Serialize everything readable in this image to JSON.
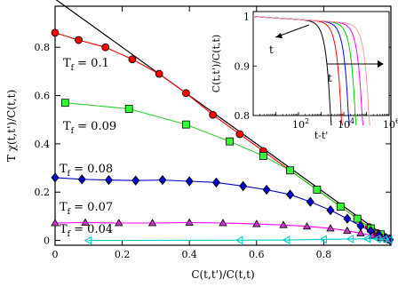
{
  "chart_data": [
    {
      "type": "scatter",
      "xlabel": "C(t,t')/C(t,t)",
      "ylabel": "T χ(t,t')/C(t,t)",
      "xlim": [
        0,
        1.0
      ],
      "ylim": [
        -0.02,
        0.97
      ],
      "xticks": [
        0,
        0.2,
        0.4,
        0.6,
        0.8
      ],
      "yticks": [
        0,
        0.2,
        0.4,
        0.6,
        0.8
      ],
      "reference_line": {
        "x": [
          0,
          1
        ],
        "y": [
          1,
          0
        ],
        "color": "#000000"
      },
      "series": [
        {
          "name": "T_f = 0.1",
          "label_base": "T",
          "label_sub": "f",
          "label_rest": " = 0.1",
          "marker": "circle",
          "color": "#ff0000",
          "line_color": "#ff0000",
          "x": [
            0.0,
            0.07,
            0.15,
            0.23,
            0.31,
            0.39,
            0.47,
            0.55,
            0.62,
            0.7,
            0.78,
            0.85,
            0.9,
            0.935,
            0.96,
            0.98,
            0.995
          ],
          "y": [
            0.86,
            0.83,
            0.8,
            0.75,
            0.69,
            0.61,
            0.52,
            0.44,
            0.37,
            0.29,
            0.21,
            0.14,
            0.09,
            0.055,
            0.03,
            0.015,
            0.003
          ]
        },
        {
          "name": "T_f = 0.09",
          "label_base": "T",
          "label_sub": "f",
          "label_rest": " = 0.09",
          "marker": "square",
          "color": "#33ff33",
          "line_color": "#33cc33",
          "x": [
            0.03,
            0.22,
            0.39,
            0.52,
            0.62,
            0.7,
            0.78,
            0.85,
            0.9,
            0.94,
            0.97,
            0.99
          ],
          "y": [
            0.57,
            0.545,
            0.48,
            0.41,
            0.35,
            0.29,
            0.21,
            0.14,
            0.09,
            0.05,
            0.025,
            0.008
          ]
        },
        {
          "name": "T_f = 0.08",
          "label_base": "T",
          "label_sub": "f",
          "label_rest": " = 0.08",
          "marker": "diamond",
          "color": "#0000cc",
          "line_color": "#0000cc",
          "x": [
            0.0,
            0.08,
            0.16,
            0.24,
            0.32,
            0.4,
            0.48,
            0.56,
            0.63,
            0.7,
            0.76,
            0.82,
            0.87,
            0.91,
            0.94,
            0.965,
            0.985,
            0.997
          ],
          "y": [
            0.26,
            0.253,
            0.25,
            0.248,
            0.25,
            0.245,
            0.24,
            0.225,
            0.21,
            0.19,
            0.16,
            0.125,
            0.09,
            0.06,
            0.04,
            0.022,
            0.01,
            0.003
          ]
        },
        {
          "name": "T_f = 0.07",
          "label_base": "T",
          "label_sub": "f",
          "label_rest": " = 0.07",
          "marker": "triangle-up",
          "color": "#cc33cc",
          "line_color": "#ff00ff",
          "x": [
            0.0,
            0.09,
            0.19,
            0.29,
            0.4,
            0.5,
            0.6,
            0.68,
            0.75,
            0.82,
            0.87,
            0.91,
            0.945,
            0.97,
            0.99
          ],
          "y": [
            0.072,
            0.074,
            0.072,
            0.072,
            0.074,
            0.072,
            0.068,
            0.064,
            0.058,
            0.05,
            0.04,
            0.03,
            0.02,
            0.01,
            0.004
          ]
        },
        {
          "name": "T_f = 0.04",
          "label_base": "T",
          "label_sub": "f",
          "label_rest": " = 0.04",
          "marker": "triangle-left",
          "color": "#00cccc",
          "line_color": "#00cccc",
          "x": [
            0.1,
            0.55,
            0.69,
            0.8,
            0.88,
            0.93,
            0.96,
            0.98,
            0.995
          ],
          "y": [
            0.0,
            0.001,
            0.002,
            0.004,
            0.006,
            0.007,
            0.006,
            0.004,
            0.002
          ]
        }
      ]
    },
    {
      "type": "line",
      "xlabel": "t-t'",
      "ylabel": "C(t,t')/C(t,t)",
      "xscale": "log",
      "xlim": [
        1,
        1000000
      ],
      "ylim": [
        0.8,
        1.01
      ],
      "xtick_exponents": [
        2,
        4,
        6
      ],
      "yticks": [
        0.8,
        0.9,
        1
      ],
      "arrow_label": "t",
      "series": [
        {
          "color": "#000000",
          "x_decay": 4000
        },
        {
          "color": "#ff0000",
          "x_decay": 12000
        },
        {
          "color": "#0000ff",
          "x_decay": 25000
        },
        {
          "color": "#00cc00",
          "x_decay": 50000
        },
        {
          "color": "#ff00ff",
          "x_decay": 100000
        },
        {
          "color": "#ff9999",
          "x_decay": 200000
        }
      ]
    }
  ]
}
